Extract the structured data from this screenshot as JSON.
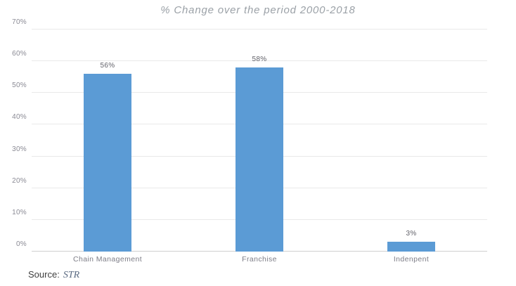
{
  "chart_data": {
    "type": "bar",
    "title": "% Change over the period 2000-2018",
    "categories": [
      "Chain Management",
      "Franchise",
      "Indenpent"
    ],
    "values": [
      56,
      58,
      3
    ],
    "data_labels": [
      "56%",
      "58%",
      "3%"
    ],
    "xlabel": "",
    "ylabel": "",
    "ylim": [
      0,
      70
    ],
    "ytick_step": 10,
    "yticks": [
      "0%",
      "10%",
      "20%",
      "30%",
      "40%",
      "50%",
      "60%",
      "70%"
    ],
    "grid": true,
    "legend": false,
    "bar_color": "#5B9BD5",
    "gridline_color": "#e9e9e9",
    "baseline_color": "#cfcfcf"
  },
  "source": {
    "label": "Source:",
    "value": "STR"
  }
}
